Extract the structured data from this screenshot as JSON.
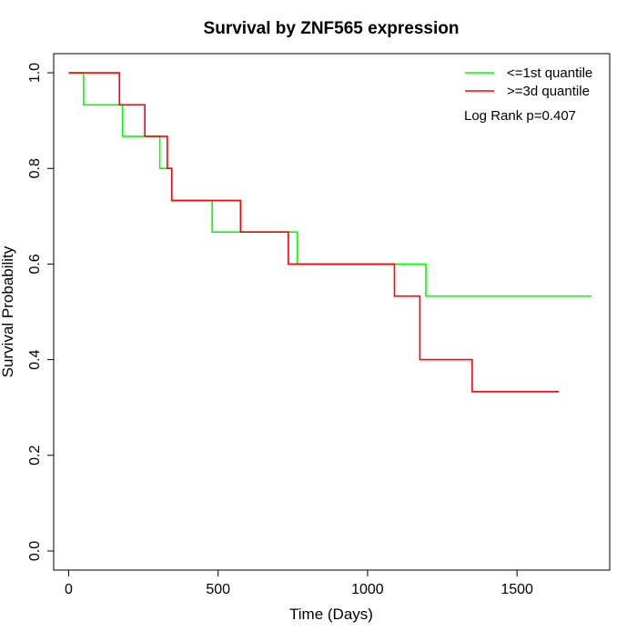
{
  "chart_data": {
    "type": "line",
    "step": true,
    "title": "Survival by ZNF565 expression",
    "xlabel": "Time (Days)",
    "ylabel": "Survival Probability",
    "xlim": [
      -50,
      1810
    ],
    "ylim": [
      -0.04,
      1.04
    ],
    "xticks": [
      0,
      500,
      1000,
      1500
    ],
    "yticks": [
      0.0,
      0.2,
      0.4,
      0.6,
      0.8,
      1.0
    ],
    "ytick_labels": [
      "0.0",
      "0.2",
      "0.4",
      "0.6",
      "0.8",
      "1.0"
    ],
    "legend_position": "top-right",
    "annotation": "Log Rank p=0.407",
    "grid": false,
    "series": [
      {
        "name": "<=1st quantile",
        "color": "#00ff00",
        "x": [
          0,
          50,
          180,
          305,
          345,
          480,
          765,
          1195,
          1750
        ],
        "y": [
          1.0,
          0.933,
          0.867,
          0.8,
          0.733,
          0.667,
          0.6,
          0.533,
          0.533
        ]
      },
      {
        "name": ">=3d quantile",
        "color": "#ff0000",
        "x": [
          0,
          170,
          255,
          330,
          345,
          575,
          735,
          1090,
          1175,
          1350,
          1640
        ],
        "y": [
          1.0,
          0.933,
          0.867,
          0.8,
          0.733,
          0.667,
          0.6,
          0.533,
          0.4,
          0.333,
          0.333
        ]
      }
    ]
  }
}
